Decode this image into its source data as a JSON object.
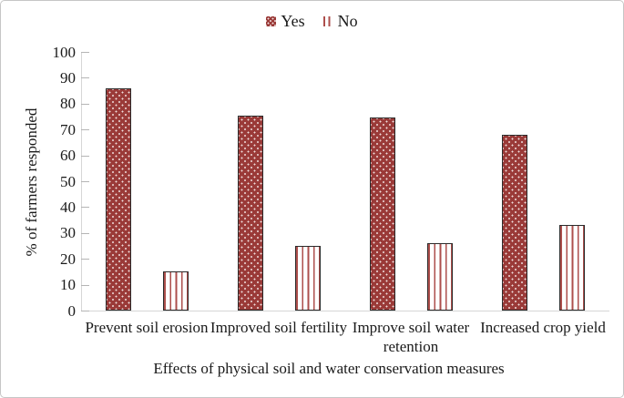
{
  "frame": {
    "background": "#ffffff",
    "border_color": "#c6c6c6"
  },
  "legend": {
    "position": "top-center",
    "labels": [
      "Yes",
      "No"
    ],
    "yes_swatch_icon": "dotted-red-square-pattern",
    "no_swatch_icon": "vertical-red-stripes-pattern"
  },
  "chart_data": {
    "type": "bar",
    "title": "",
    "categories": [
      "Prevent soil erosion",
      "Improved soil fertility",
      "Improve soil water retention",
      "Increased crop yield"
    ],
    "series": [
      {
        "name": "Yes",
        "values": [
          86,
          75.5,
          74.7,
          68
        ]
      },
      {
        "name": "No",
        "values": [
          15,
          25,
          26,
          33
        ]
      }
    ],
    "xlabel": "Effects of physical soil and water conservation measures",
    "ylabel": "% of farmers responded",
    "ylim": [
      0,
      100
    ],
    "yticks": [
      0,
      10,
      20,
      30,
      40,
      50,
      60,
      70,
      80,
      90,
      100
    ],
    "grid": false,
    "legend_position": "top-center",
    "colors": {
      "yes_fill": "#9a3a38",
      "yes_dot": "#f0dedd",
      "no_stripe": "#ad4f4c",
      "bar_border": "#2b2b2b",
      "axis_line": "#d6d6d6",
      "tick_mark": "#b5b5b5",
      "text": "#1a1a1a"
    }
  }
}
